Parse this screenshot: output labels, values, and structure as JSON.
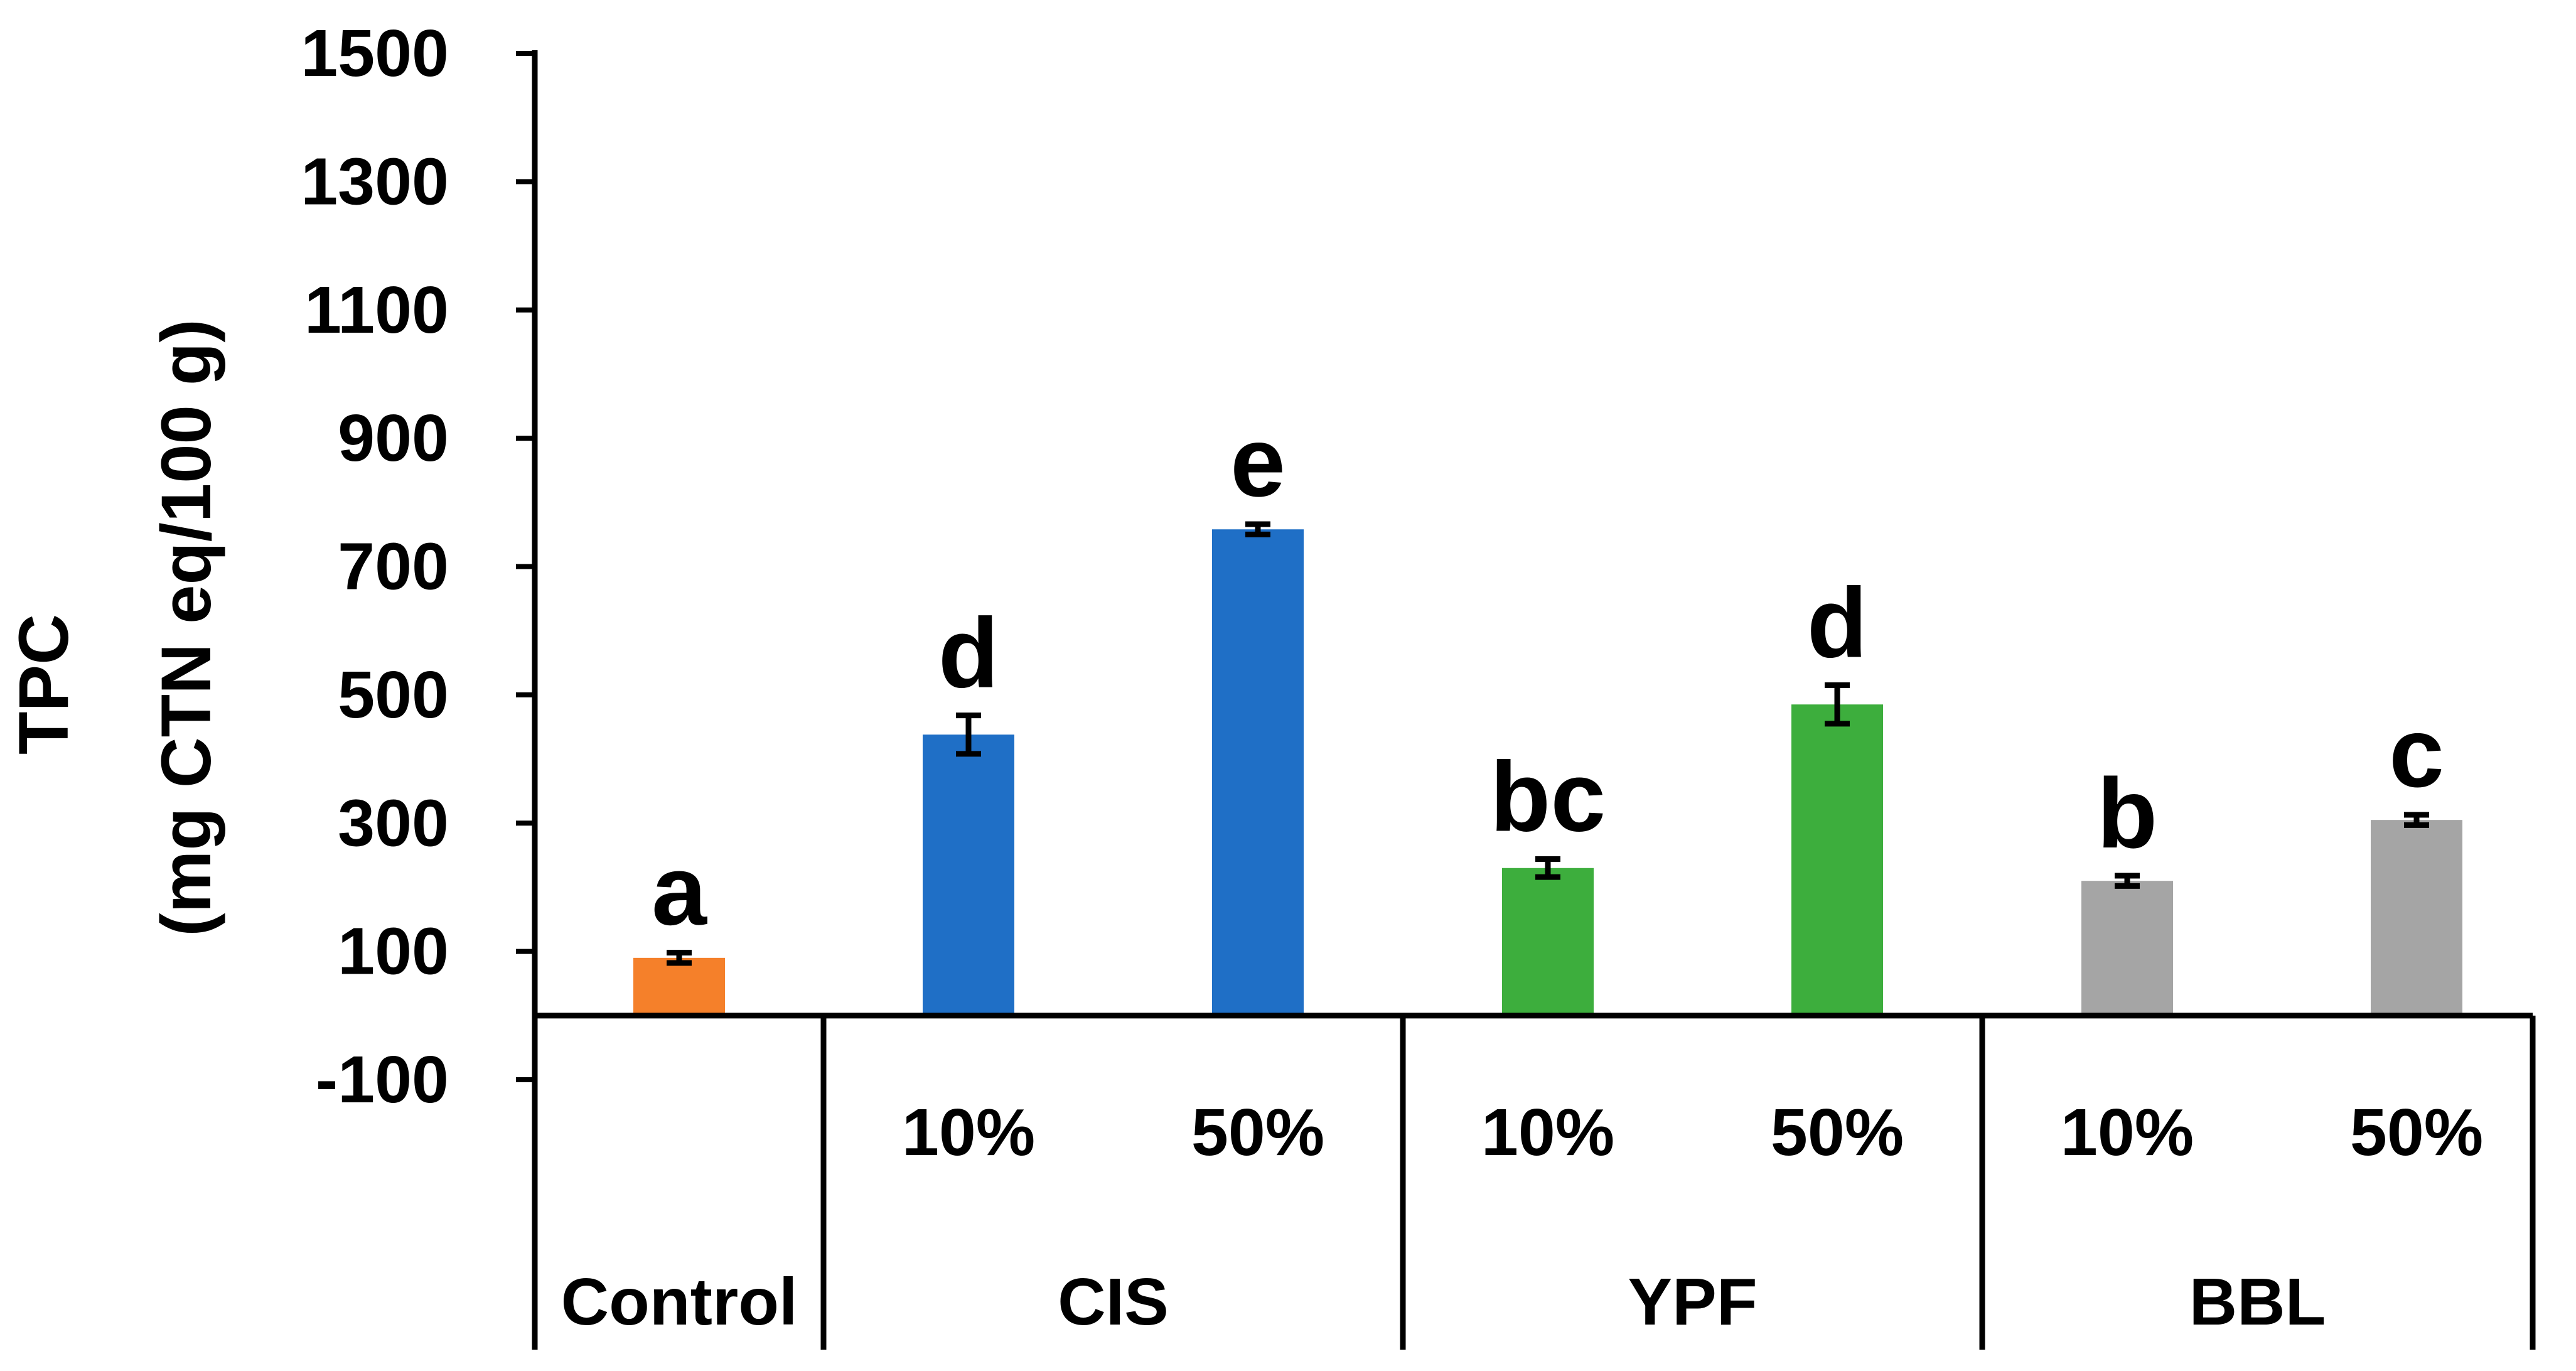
{
  "chart_data": {
    "type": "bar",
    "ylabel_line1": "TPC",
    "ylabel_line2": "(mg CTN eq/100 g)",
    "ylim": [
      -100,
      1500
    ],
    "yticks": [
      "1500",
      "1300",
      "1100",
      "900",
      "700",
      "500",
      "300",
      "100",
      "-100"
    ],
    "ytick_values": [
      1500,
      1300,
      1100,
      900,
      700,
      500,
      300,
      100,
      -100
    ],
    "bars": [
      {
        "group": "Control",
        "sub": "",
        "value": 90,
        "error": 8,
        "letter": "a",
        "color": "#F5802A"
      },
      {
        "group": "CIS",
        "sub": "10%",
        "value": 438,
        "error": 30,
        "letter": "d",
        "color": "#1F6FC6"
      },
      {
        "group": "CIS",
        "sub": "50%",
        "value": 758,
        "error": 8,
        "letter": "e",
        "color": "#1F6FC6"
      },
      {
        "group": "YPF",
        "sub": "10%",
        "value": 230,
        "error": 14,
        "letter": "bc",
        "color": "#3DAE3D"
      },
      {
        "group": "YPF",
        "sub": "50%",
        "value": 485,
        "error": 30,
        "letter": "d",
        "color": "#3DAE3D"
      },
      {
        "group": "BBL",
        "sub": "10%",
        "value": 210,
        "error": 8,
        "letter": "b",
        "color": "#A5A5A5"
      },
      {
        "group": "BBL",
        "sub": "50%",
        "value": 305,
        "error": 8,
        "letter": "c",
        "color": "#A5A5A5"
      }
    ],
    "groups": [
      "Control",
      "CIS",
      "YPF",
      "BBL"
    ]
  }
}
